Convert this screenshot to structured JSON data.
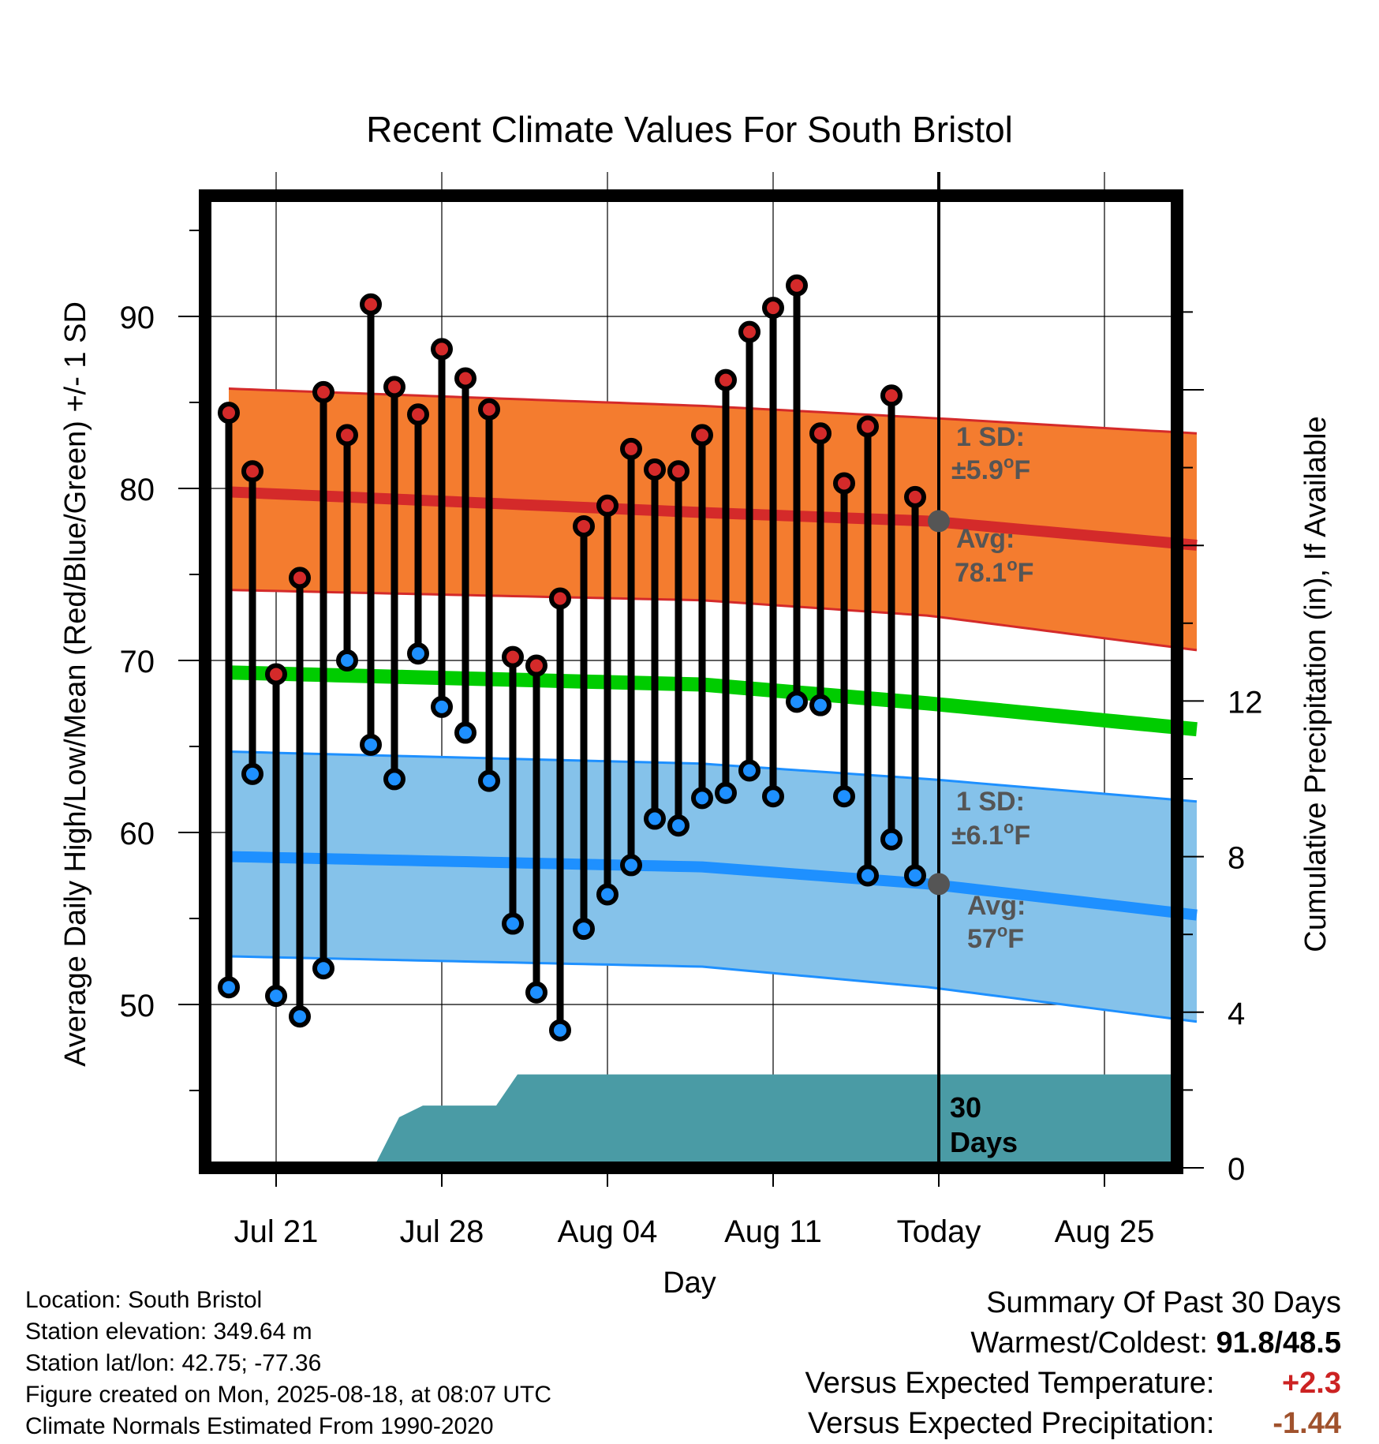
{
  "chart_data": {
    "type": "line",
    "title": "Recent Climate Values For South Bristol",
    "xlabel": "Day",
    "ylabel": "Average Daily High/Low/Mean (Red/Blue/Green) +/- 1 SD",
    "y2label": "Cumulative Precipitation (in), If Available",
    "x_tick_labels": [
      "Jul 21",
      "Jul 28",
      "Aug 04",
      "Aug 11",
      "Today",
      "Aug 25"
    ],
    "y_tick_labels": [
      "50",
      "60",
      "70",
      "80",
      "90"
    ],
    "y2_tick_labels": [
      "0",
      "4",
      "8",
      "12"
    ],
    "ylim": [
      41,
      97
    ],
    "y2lim": [
      0,
      24
    ],
    "x_days": [
      "Jul 19",
      "Jul 20",
      "Jul 21",
      "Jul 22",
      "Jul 23",
      "Jul 24",
      "Jul 25",
      "Jul 26",
      "Jul 27",
      "Jul 28",
      "Jul 29",
      "Jul 30",
      "Jul 31",
      "Aug 01",
      "Aug 02",
      "Aug 03",
      "Aug 04",
      "Aug 05",
      "Aug 06",
      "Aug 07",
      "Aug 08",
      "Aug 09",
      "Aug 10",
      "Aug 11",
      "Aug 12",
      "Aug 13",
      "Aug 14",
      "Aug 15",
      "Aug 16",
      "Aug 17",
      "Aug 18",
      "Aug 19",
      "Aug 20",
      "Aug 21",
      "Aug 22",
      "Aug 23",
      "Aug 24",
      "Aug 25",
      "Aug 26",
      "Aug 27",
      "Aug 28"
    ],
    "today_label": "Today",
    "series": [
      {
        "name": "High",
        "color": "#cc2222",
        "values": [
          84.4,
          81.0,
          69.2,
          74.8,
          85.6,
          83.1,
          90.7,
          85.9,
          84.3,
          88.1,
          86.4,
          84.6,
          70.2,
          69.7,
          73.6,
          77.8,
          79.0,
          82.3,
          81.1,
          81.0,
          83.1,
          86.3,
          89.1,
          90.5,
          91.8,
          83.2,
          80.3,
          83.6,
          85.4,
          79.5
        ]
      },
      {
        "name": "Low",
        "color": "#2a8ff0",
        "values": [
          51.0,
          63.4,
          50.5,
          49.3,
          52.1,
          70.0,
          65.1,
          63.1,
          70.4,
          67.3,
          65.8,
          63.0,
          54.7,
          50.7,
          48.5,
          54.4,
          56.4,
          58.1,
          60.8,
          60.4,
          62.0,
          62.3,
          63.6,
          62.1,
          67.6,
          67.4,
          62.1,
          57.5,
          59.6,
          57.5
        ]
      }
    ],
    "normals": {
      "high_mean": [
        [
          0,
          79.8
        ],
        [
          20,
          78.6
        ],
        [
          29.6,
          78.1
        ],
        [
          40.9,
          76.7
        ]
      ],
      "high_upper": [
        [
          0,
          85.8
        ],
        [
          20,
          84.8
        ],
        [
          29.6,
          84.1
        ],
        [
          40.9,
          83.2
        ]
      ],
      "high_lower": [
        [
          0,
          74.1
        ],
        [
          20,
          73.5
        ],
        [
          29.6,
          72.6
        ],
        [
          40.9,
          70.6
        ]
      ],
      "mean_line": [
        [
          0,
          69.3
        ],
        [
          20,
          68.6
        ],
        [
          29.6,
          67.5
        ],
        [
          40.9,
          66.0
        ]
      ],
      "low_mean": [
        [
          0,
          58.6
        ],
        [
          20,
          58.0
        ],
        [
          29.6,
          57.0
        ],
        [
          40.9,
          55.2
        ]
      ],
      "low_upper": [
        [
          0,
          64.7
        ],
        [
          20,
          64.0
        ],
        [
          29.6,
          63.1
        ],
        [
          40.9,
          61.8
        ]
      ],
      "low_lower": [
        [
          0,
          52.8
        ],
        [
          20,
          52.2
        ],
        [
          29.6,
          51.0
        ],
        [
          40.9,
          49.0
        ]
      ]
    },
    "precipitation": {
      "x": [
        0,
        5.8,
        6.2,
        7.2,
        8.2,
        10.3,
        11.3,
        12.2,
        12.5,
        20,
        29.6,
        40.9
      ],
      "values": [
        0,
        0,
        0.1,
        1.3,
        1.6,
        1.6,
        1.6,
        2.4,
        2.4,
        2.4,
        2.4,
        2.4
      ]
    },
    "colors": {
      "high_band": "#f47c2f",
      "high_line": "#d42a2a",
      "mean_line": "#00cc00",
      "low_band": "#85c2ea",
      "low_line": "#1e90ff",
      "precip": "#4a9ba5",
      "today_dot": "#555555"
    }
  },
  "annotations": {
    "high_sd_1": "1 SD:",
    "high_sd_2": "±5.9",
    "high_avg_1": "Avg:",
    "high_avg_2": "78.1",
    "low_sd_1": "1 SD:",
    "low_sd_2": "±6.1",
    "low_avg_1": "Avg:",
    "low_avg_2": "57",
    "unit": "F",
    "degree": "o",
    "window_1": "30",
    "window_2": "Days"
  },
  "footer": {
    "location": "Location: South Bristol",
    "elevation": "Station elevation: 349.64 m",
    "latlon": "Station lat/lon: 42.75; -77.36",
    "created": "Figure created on Mon, 2025-08-18, at 08:07 UTC",
    "normals": "Climate Normals Estimated From 1990-2020"
  },
  "summary": {
    "heading": "Summary Of Past 30 Days",
    "warm_cold_label": "Warmest/Coldest:",
    "warm_cold_value": "91.8/48.5",
    "temp_label": "Versus Expected Temperature:",
    "temp_value": "+2.3",
    "temp_color": "#cc2222",
    "precip_label": "Versus Expected Precipitation:",
    "precip_value": "-1.44",
    "precip_color": "#a0522d"
  }
}
